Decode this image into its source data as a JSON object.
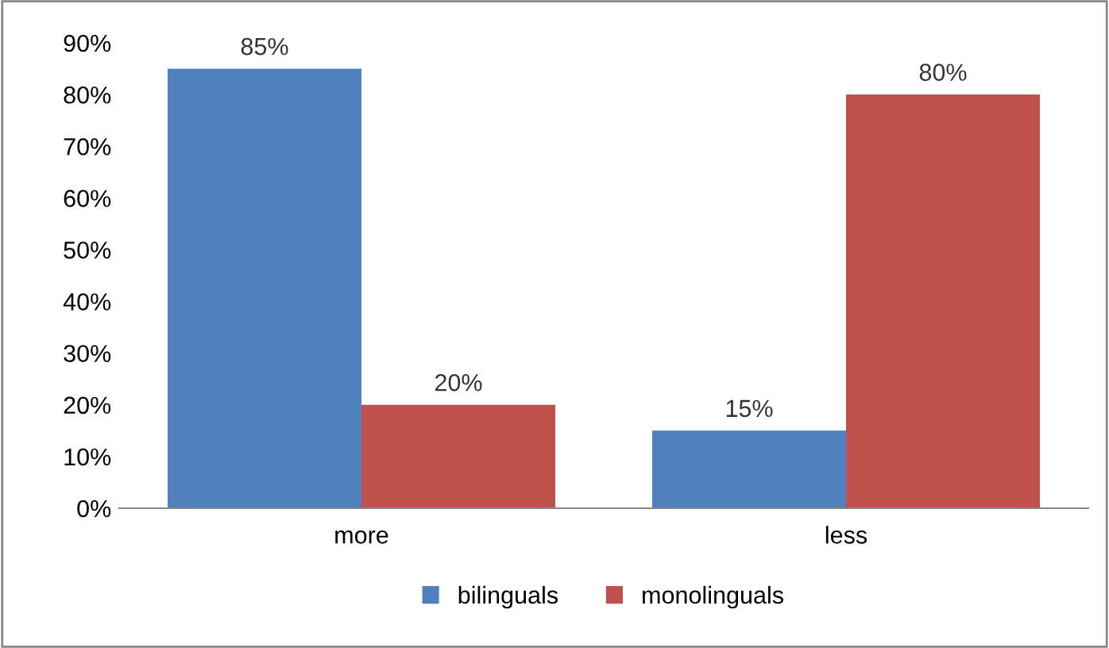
{
  "chart_data": {
    "type": "bar",
    "categories": [
      "more",
      "less"
    ],
    "series": [
      {
        "name": "bilinguals",
        "color": "#4f81bd",
        "values": [
          85,
          15
        ],
        "value_labels": [
          "85%",
          "15%"
        ]
      },
      {
        "name": "monolinguals",
        "color": "#c0504d",
        "values": [
          20,
          80
        ],
        "value_labels": [
          "20%",
          "80%"
        ]
      }
    ],
    "ylim": [
      0,
      90
    ],
    "yticks": [
      {
        "value": 0,
        "label": "0%"
      },
      {
        "value": 10,
        "label": "10%"
      },
      {
        "value": 20,
        "label": "20%"
      },
      {
        "value": 30,
        "label": "30%"
      },
      {
        "value": 40,
        "label": "40%"
      },
      {
        "value": 50,
        "label": "50%"
      },
      {
        "value": 60,
        "label": "60%"
      },
      {
        "value": 70,
        "label": "70%"
      },
      {
        "value": 80,
        "label": "80%"
      },
      {
        "value": 90,
        "label": "90%"
      }
    ],
    "grid": false,
    "legend": "bottom"
  }
}
